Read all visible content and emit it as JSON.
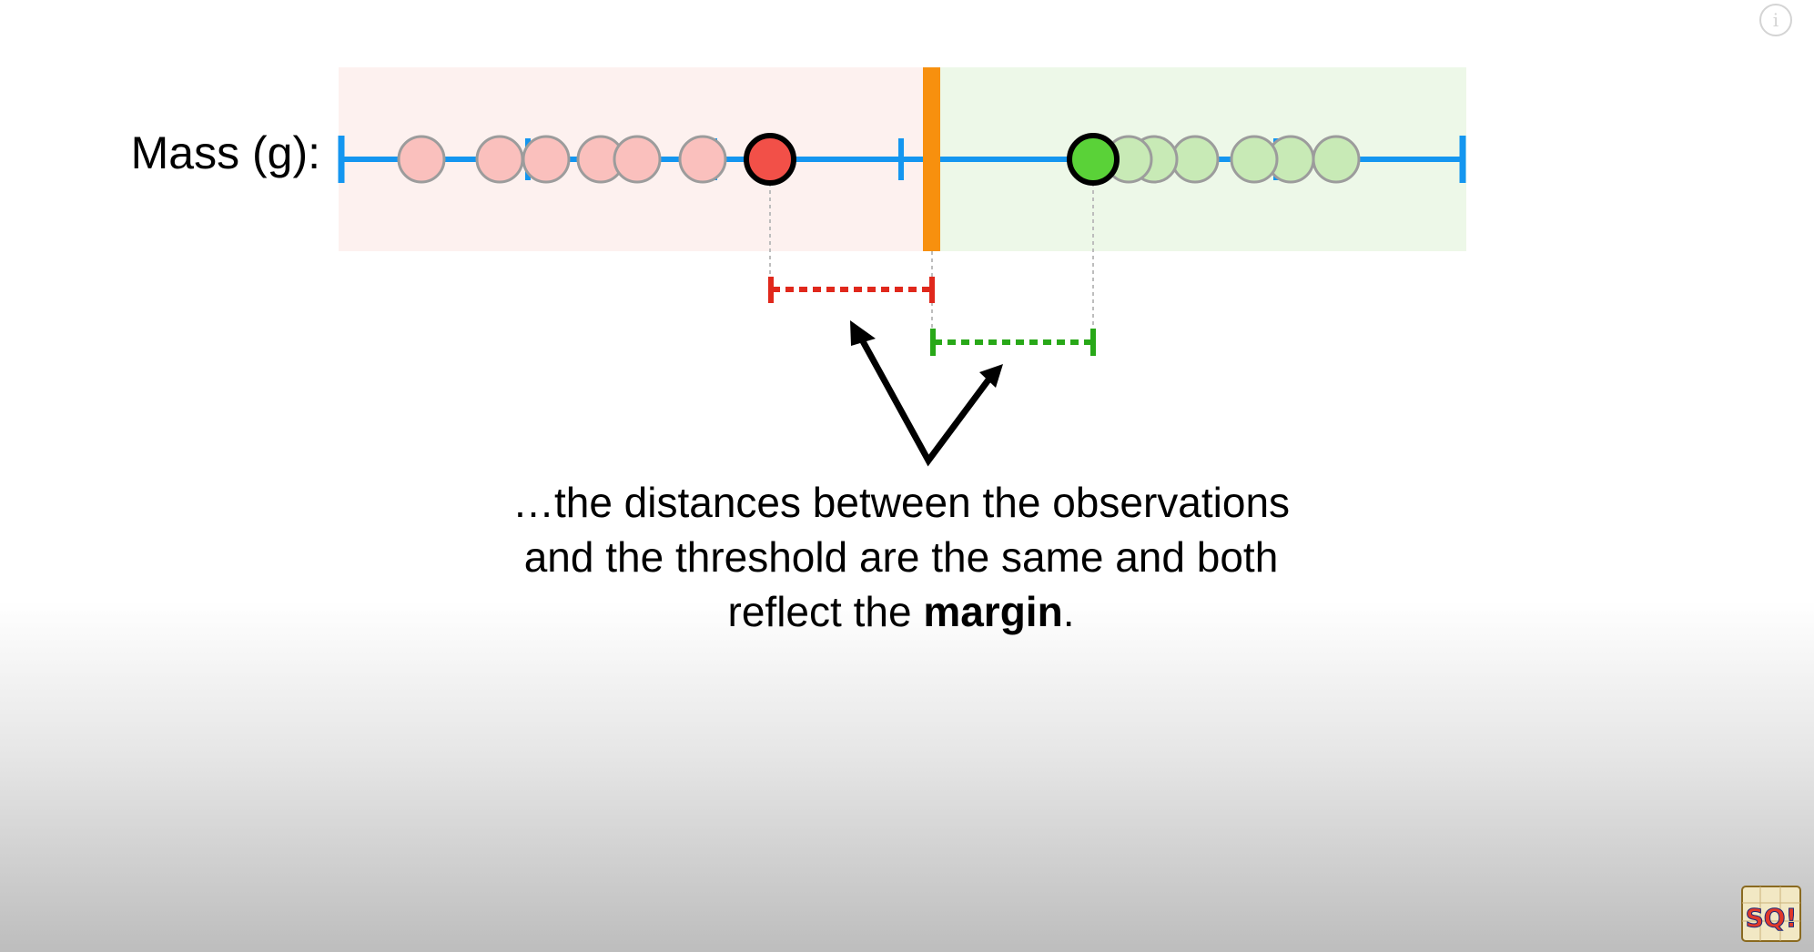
{
  "diagram": {
    "axis_label": "Mass (g):",
    "caption": {
      "text_before": "…the distances between the observations and the threshold are the same and both reflect the ",
      "bold_word": "margin",
      "text_after": "."
    },
    "colors": {
      "axis_line": "#1496f0",
      "threshold": "#f7900e",
      "left_region": "#fdf1ef",
      "right_region": "#edf8e8",
      "left_points": "#fac0bd",
      "right_points": "#c8eab6",
      "left_support_vector": "#f25048",
      "right_support_vector": "#5ad238",
      "left_margin": "#e0281c",
      "right_margin": "#28a818",
      "point_outline": "#9c9c9c",
      "guide_line": "#bdbdbd"
    },
    "left_points": 8,
    "right_points": 7,
    "support_vectors": [
      "left-support-vector",
      "right-support-vector"
    ]
  },
  "ui": {
    "info_icon": "info-icon",
    "info_glyph": "i",
    "logo_icon": "statquest-logo-icon",
    "logo_text": "SQ!"
  }
}
